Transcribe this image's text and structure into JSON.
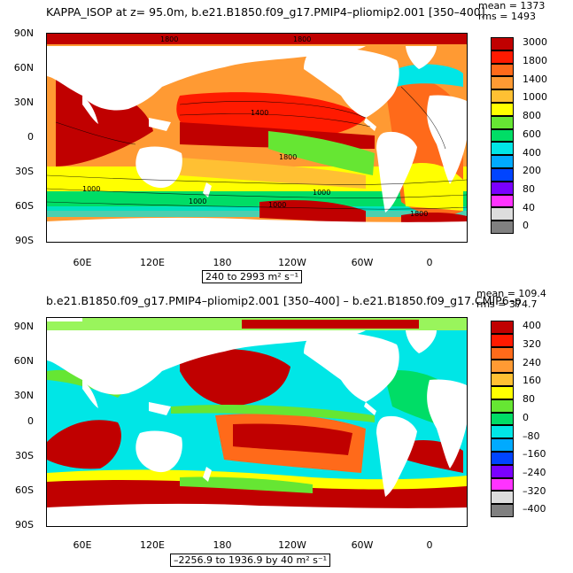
{
  "panel1": {
    "title": "KAPPA_ISOP at z=  95.0m, b.e21.B1850.f09_g17.PMIP4–pliomip2.001 [350–400]",
    "mean_label": "mean = 1373",
    "rms_label": "rms = 1493",
    "range_label": "240 to 2993 m² s⁻¹",
    "y_ticks": [
      "90N",
      "60N",
      "30N",
      "0",
      "30S",
      "60S",
      "90S"
    ],
    "x_ticks": [
      "60E",
      "120E",
      "180",
      "120W",
      "60W",
      "0"
    ],
    "colorbar": {
      "labels": [
        "3000",
        "1800",
        "1400",
        "1000",
        "800",
        "600",
        "400",
        "200",
        "80",
        "40",
        "0"
      ],
      "colors": [
        "#c00000",
        "#ff1a00",
        "#ff6a1a",
        "#ff9a33",
        "#ffc033",
        "#ffff00",
        "#66e633",
        "#00dd66",
        "#00e6e6",
        "#00aaff",
        "#0044ff",
        "#7a00ff",
        "#ff33ff",
        "#dddddd",
        "#808080"
      ]
    }
  },
  "panel2": {
    "title": "b.e21.B1850.f09_g17.PMIP4–pliomip2.001 [350–400] – b.e21.B1850.f09_g17.CMIP6–p",
    "mean_label": "mean = 109.4",
    "rms_label": "rms = 374.7",
    "range_label": "–2256.9 to 1936.9 by 40 m² s⁻¹",
    "y_ticks": [
      "90N",
      "60N",
      "30N",
      "0",
      "30S",
      "60S",
      "90S"
    ],
    "x_ticks": [
      "60E",
      "120E",
      "180",
      "120W",
      "60W",
      "0"
    ],
    "colorbar": {
      "labels": [
        "400",
        "320",
        "240",
        "160",
        "80",
        "0",
        "–80",
        "–160",
        "–240",
        "–320",
        "–400"
      ],
      "colors": [
        "#c00000",
        "#ff1a00",
        "#ff6a1a",
        "#ff9a33",
        "#ffc033",
        "#ffff00",
        "#66e633",
        "#00dd66",
        "#00e6e6",
        "#00aaff",
        "#0044ff",
        "#7a00ff",
        "#ff33ff",
        "#dddddd",
        "#808080"
      ]
    }
  }
}
